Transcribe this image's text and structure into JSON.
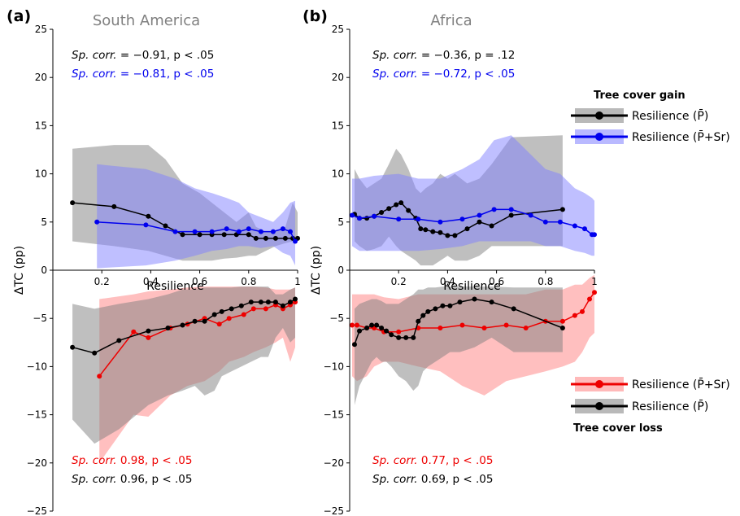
{
  "chart_data": [
    {
      "type": "line",
      "panel_letter": "(a)",
      "title": "South America",
      "xlabel": "Resilience",
      "ylabel": "ΔTC (pp)",
      "xlim": [
        0,
        1
      ],
      "ylim": [
        -25,
        25
      ],
      "xticks": [
        "0.2",
        "0.4",
        "0.6",
        "0.8",
        "1"
      ],
      "yticks": [
        "25",
        "20",
        "15",
        "10",
        "5",
        "0",
        "−5",
        "−10",
        "−15",
        "−20",
        "−25"
      ],
      "grid": false,
      "annotations": {
        "gain_black": {
          "prefix": "Sp. corr.",
          "text": " = −0.91, p < .05",
          "color": "#000000"
        },
        "gain_blue": {
          "prefix": "Sp. corr.",
          "text": " = −0.81, p < .05",
          "color": "#0000ee"
        },
        "loss_red": {
          "prefix": "Sp. corr.",
          "text": " 0.98, p < .05",
          "color": "#ee0000"
        },
        "loss_black": {
          "prefix": "Sp. corr.",
          "text": " 0.96, p < .05",
          "color": "#000000"
        }
      },
      "series": [
        {
          "group": "gain",
          "label": "Resilience (P̄)",
          "color": "#000000",
          "band_color": "#808080",
          "x": [
            0.08,
            0.25,
            0.39,
            0.46,
            0.53,
            0.6,
            0.65,
            0.7,
            0.75,
            0.8,
            0.83,
            0.87,
            0.91,
            0.95,
            0.98,
            1.0
          ],
          "y": [
            7.0,
            6.6,
            5.6,
            4.6,
            3.7,
            3.7,
            3.7,
            3.7,
            3.7,
            3.7,
            3.3,
            3.3,
            3.3,
            3.3,
            3.3,
            3.3
          ],
          "upper": [
            12.6,
            13.0,
            13.0,
            11.5,
            9.0,
            8.0,
            7.0,
            6.0,
            5.0,
            6.0,
            4.5,
            4.0,
            4.0,
            4.5,
            7.0,
            6.0
          ],
          "lower": [
            3.0,
            2.5,
            2.0,
            1.5,
            1.0,
            1.0,
            1.0,
            1.2,
            1.3,
            1.5,
            1.5,
            2.0,
            2.5,
            2.8,
            3.0,
            3.2
          ]
        },
        {
          "group": "gain",
          "label": "Resilience (P̄+Sr)",
          "color": "#0000ee",
          "band_color": "#8080ff",
          "x": [
            0.18,
            0.38,
            0.5,
            0.58,
            0.65,
            0.71,
            0.76,
            0.8,
            0.85,
            0.9,
            0.94,
            0.97,
            0.99
          ],
          "y": [
            5.0,
            4.7,
            4.0,
            4.0,
            4.0,
            4.3,
            4.0,
            4.3,
            4.0,
            4.0,
            4.3,
            4.0,
            3.0
          ],
          "upper": [
            11.0,
            10.5,
            9.5,
            8.5,
            8.0,
            7.5,
            7.0,
            6.0,
            5.5,
            5.0,
            6.0,
            7.0,
            7.2
          ],
          "lower": [
            0.2,
            0.5,
            1.0,
            1.5,
            2.0,
            2.2,
            2.5,
            2.5,
            2.3,
            2.5,
            1.8,
            1.5,
            0.5
          ]
        },
        {
          "group": "loss",
          "label": "Resilience (P̄+Sr)",
          "color": "#ee0000",
          "band_color": "#ff8080",
          "x": [
            0.19,
            0.33,
            0.39,
            0.48,
            0.55,
            0.62,
            0.68,
            0.72,
            0.78,
            0.82,
            0.87,
            0.91,
            0.94,
            0.97,
            0.99
          ],
          "y": [
            -11.0,
            -6.4,
            -7.0,
            -6.0,
            -5.6,
            -5.0,
            -5.6,
            -5.0,
            -4.6,
            -4.0,
            -4.0,
            -3.6,
            -4.0,
            -3.6,
            -3.3
          ],
          "upper": [
            -3.0,
            -2.5,
            -2.2,
            -2.0,
            -1.8,
            -1.7,
            -1.7,
            -1.7,
            -1.7,
            -1.7,
            -1.8,
            -2.0,
            -2.0,
            -2.0,
            -1.8
          ],
          "lower": [
            -20.0,
            -15.0,
            -15.2,
            -13.0,
            -12.0,
            -11.5,
            -10.5,
            -9.5,
            -9.0,
            -8.5,
            -8.0,
            -7.5,
            -7.0,
            -9.5,
            -8.0
          ]
        },
        {
          "group": "loss",
          "label": "Resilience (P̄)",
          "color": "#000000",
          "band_color": "#808080",
          "x": [
            0.08,
            0.17,
            0.27,
            0.39,
            0.47,
            0.53,
            0.58,
            0.62,
            0.66,
            0.69,
            0.73,
            0.77,
            0.81,
            0.85,
            0.88,
            0.91,
            0.94,
            0.97,
            0.99
          ],
          "y": [
            -8.0,
            -8.6,
            -7.3,
            -6.3,
            -6.0,
            -5.7,
            -5.3,
            -5.3,
            -4.6,
            -4.3,
            -4.0,
            -3.7,
            -3.3,
            -3.3,
            -3.3,
            -3.3,
            -3.7,
            -3.3,
            -3.0
          ],
          "upper": [
            -3.5,
            -4.0,
            -3.5,
            -3.0,
            -2.5,
            -2.0,
            -2.0,
            -1.8,
            -1.8,
            -1.8,
            -1.8,
            -1.7,
            -1.7,
            -1.7,
            -1.7,
            -2.5,
            -2.5,
            -2.0,
            -1.8
          ],
          "lower": [
            -15.5,
            -18.0,
            -16.5,
            -14.0,
            -13.0,
            -12.5,
            -12.0,
            -13.0,
            -12.5,
            -11.0,
            -10.5,
            -10.0,
            -9.5,
            -9.0,
            -9.0,
            -7.0,
            -6.0,
            -7.5,
            -7.0
          ]
        }
      ]
    },
    {
      "type": "line",
      "panel_letter": "(b)",
      "title": "Africa",
      "xlabel": "Resilience",
      "ylabel": "ΔTC (pp)",
      "xlim": [
        0,
        1
      ],
      "ylim": [
        -25,
        25
      ],
      "xticks": [
        "0.2",
        "0.4",
        "0.6",
        "0.8",
        "1"
      ],
      "yticks": [
        "25",
        "20",
        "15",
        "10",
        "5",
        "0",
        "−5",
        "−10",
        "−15",
        "−20",
        "−25"
      ],
      "grid": false,
      "annotations": {
        "gain_black": {
          "prefix": "Sp. corr.",
          "text": " = −0.36, p = .12",
          "color": "#000000"
        },
        "gain_blue": {
          "prefix": "Sp. corr.",
          "text": " = −0.72, p < .05",
          "color": "#0000ee"
        },
        "loss_red": {
          "prefix": "Sp. corr.",
          "text": " 0.77, p < .05",
          "color": "#ee0000"
        },
        "loss_black": {
          "prefix": "Sp. corr.",
          "text": " 0.69, p < .05",
          "color": "#000000"
        }
      },
      "series": [
        {
          "group": "gain",
          "label": "Resilience (P̄)",
          "color": "#000000",
          "band_color": "#808080",
          "x": [
            0.02,
            0.04,
            0.07,
            0.1,
            0.13,
            0.16,
            0.19,
            0.21,
            0.24,
            0.27,
            0.29,
            0.31,
            0.34,
            0.37,
            0.4,
            0.43,
            0.48,
            0.53,
            0.58,
            0.66,
            0.87
          ],
          "y": [
            5.8,
            5.4,
            5.4,
            5.6,
            6.0,
            6.4,
            6.8,
            7.0,
            6.2,
            5.4,
            4.3,
            4.2,
            4.0,
            3.9,
            3.6,
            3.6,
            4.3,
            5.0,
            4.6,
            5.7,
            6.3
          ],
          "upper": [
            10.5,
            9.5,
            8.5,
            9.0,
            9.5,
            11.0,
            12.6,
            12.0,
            10.5,
            8.5,
            8.0,
            8.5,
            9.0,
            10.0,
            9.5,
            10.0,
            9.0,
            9.5,
            11.0,
            13.8,
            14.0
          ],
          "lower": [
            3.0,
            2.5,
            2.0,
            2.2,
            2.5,
            3.5,
            2.5,
            2.0,
            1.5,
            1.0,
            0.5,
            0.5,
            0.5,
            1.0,
            1.5,
            1.0,
            1.0,
            1.5,
            2.5,
            2.5,
            2.5
          ]
        },
        {
          "group": "gain",
          "label": "Resilience (P̄+Sr)",
          "color": "#0000ee",
          "band_color": "#8080ff",
          "x": [
            0.01,
            0.04,
            0.1,
            0.2,
            0.28,
            0.37,
            0.46,
            0.53,
            0.59,
            0.66,
            0.74,
            0.8,
            0.86,
            0.92,
            0.96,
            0.99,
            1.0
          ],
          "y": [
            5.7,
            5.4,
            5.6,
            5.3,
            5.3,
            5.0,
            5.3,
            5.7,
            6.3,
            6.3,
            5.7,
            5.0,
            5.0,
            4.6,
            4.3,
            3.7,
            3.7
          ],
          "upper": [
            9.5,
            9.5,
            9.8,
            10.0,
            9.5,
            9.5,
            10.5,
            11.5,
            13.5,
            14.0,
            12.0,
            10.5,
            10.0,
            8.5,
            8.0,
            7.5,
            7.2
          ],
          "lower": [
            2.5,
            2.0,
            2.0,
            2.0,
            2.0,
            2.2,
            2.5,
            3.0,
            3.0,
            3.0,
            3.0,
            2.5,
            2.5,
            2.0,
            1.8,
            1.5,
            1.5
          ]
        },
        {
          "group": "loss",
          "label": "Resilience (P̄+Sr)",
          "color": "#ee0000",
          "band_color": "#ff8080",
          "x": [
            0.01,
            0.03,
            0.07,
            0.1,
            0.14,
            0.2,
            0.28,
            0.37,
            0.46,
            0.55,
            0.64,
            0.72,
            0.8,
            0.87,
            0.92,
            0.95,
            0.98,
            1.0
          ],
          "y": [
            -5.7,
            -5.7,
            -6.0,
            -6.0,
            -6.4,
            -6.4,
            -6.0,
            -6.0,
            -5.7,
            -6.0,
            -5.7,
            -6.0,
            -5.3,
            -5.3,
            -4.7,
            -4.3,
            -3.0,
            -2.3
          ],
          "upper": [
            -2.5,
            -2.5,
            -2.5,
            -2.5,
            -2.8,
            -3.0,
            -2.5,
            -2.5,
            -2.5,
            -2.5,
            -2.5,
            -2.5,
            -2.0,
            -2.0,
            -1.5,
            -1.5,
            -0.8,
            -0.5
          ],
          "lower": [
            -11.0,
            -11.5,
            -11.0,
            -10.0,
            -9.5,
            -9.5,
            -10.0,
            -10.5,
            -12.0,
            -13.0,
            -11.5,
            -11.0,
            -10.5,
            -10.0,
            -9.5,
            -8.5,
            -7.0,
            -6.5
          ]
        },
        {
          "group": "loss",
          "label": "Resilience (P̄)",
          "color": "#000000",
          "band_color": "#808080",
          "x": [
            0.02,
            0.04,
            0.07,
            0.09,
            0.11,
            0.13,
            0.15,
            0.17,
            0.2,
            0.23,
            0.26,
            0.28,
            0.3,
            0.32,
            0.35,
            0.38,
            0.41,
            0.45,
            0.51,
            0.58,
            0.67,
            0.87
          ],
          "y": [
            -7.7,
            -6.3,
            -6.0,
            -5.7,
            -5.7,
            -6.0,
            -6.3,
            -6.7,
            -7.0,
            -7.0,
            -7.0,
            -5.3,
            -4.7,
            -4.3,
            -4.0,
            -3.7,
            -3.7,
            -3.3,
            -3.0,
            -3.3,
            -4.0,
            -6.0
          ],
          "upper": [
            -4.0,
            -3.5,
            -3.2,
            -3.0,
            -3.0,
            -3.2,
            -3.5,
            -3.5,
            -3.5,
            -3.0,
            -2.5,
            -2.0,
            -2.0,
            -1.8,
            -1.8,
            -1.7,
            -1.7,
            -1.7,
            -1.7,
            -1.7,
            -1.8,
            -1.8
          ],
          "lower": [
            -14.0,
            -12.0,
            -10.5,
            -9.5,
            -9.0,
            -9.5,
            -9.5,
            -10.0,
            -11.0,
            -11.5,
            -12.5,
            -12.0,
            -10.5,
            -10.0,
            -9.5,
            -9.0,
            -8.5,
            -8.5,
            -8.0,
            -7.0,
            -8.5,
            -8.5
          ]
        }
      ]
    }
  ],
  "legend_gain": {
    "title": "Tree cover gain",
    "items": [
      {
        "label": "Resilience (P̄)",
        "color": "#000000",
        "band_color": "#808080"
      },
      {
        "label": "Resilience (P̄+Sr)",
        "color": "#0000ee",
        "band_color": "#8080ff"
      }
    ]
  },
  "legend_loss": {
    "title": "Tree cover loss",
    "items": [
      {
        "label": "Resilience (P̄+Sr)",
        "color": "#ee0000",
        "band_color": "#ff8080"
      },
      {
        "label": "Resilience (P̄)",
        "color": "#000000",
        "band_color": "#808080"
      }
    ]
  }
}
